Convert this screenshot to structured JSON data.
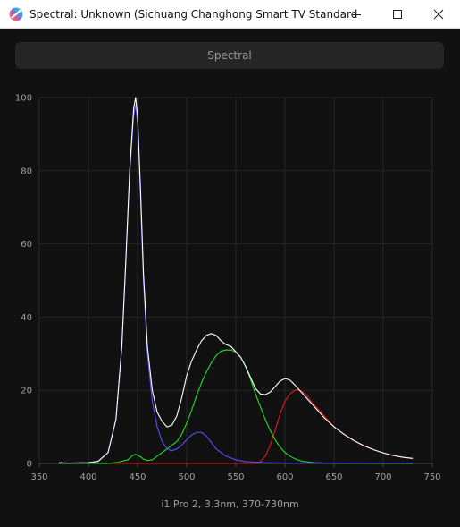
{
  "window": {
    "title": "Spectral: Unknown (Sichuang Changhong Smart TV Standard (i...",
    "minimize_icon": "minimize-icon",
    "maximize_icon": "maximize-icon",
    "close_icon": "close-icon"
  },
  "tab": {
    "label": "Spectral"
  },
  "caption": "i1 Pro 2, 3.3nm, 370-730nm",
  "chart_data": {
    "type": "line",
    "title": "",
    "xlabel": "",
    "ylabel": "",
    "xlim": [
      350,
      750
    ],
    "ylim": [
      0,
      100
    ],
    "x_ticks": [
      350,
      400,
      450,
      500,
      550,
      600,
      650,
      700,
      750
    ],
    "y_ticks": [
      0,
      20,
      40,
      60,
      80,
      100
    ],
    "grid": true,
    "series": [
      {
        "color": "#ffffff",
        "points": [
          [
            370,
            0.2
          ],
          [
            380,
            0.1
          ],
          [
            400,
            0.2
          ],
          [
            410,
            0.6
          ],
          [
            420,
            3
          ],
          [
            428,
            12
          ],
          [
            434,
            32
          ],
          [
            438,
            55
          ],
          [
            442,
            80
          ],
          [
            446,
            97
          ],
          [
            448,
            100
          ],
          [
            450,
            95
          ],
          [
            453,
            75
          ],
          [
            456,
            52
          ],
          [
            460,
            32
          ],
          [
            465,
            20
          ],
          [
            470,
            14
          ],
          [
            475,
            11.5
          ],
          [
            480,
            10
          ],
          [
            485,
            10.5
          ],
          [
            490,
            13
          ],
          [
            495,
            18
          ],
          [
            500,
            24
          ],
          [
            505,
            28
          ],
          [
            510,
            31
          ],
          [
            515,
            33.5
          ],
          [
            520,
            35
          ],
          [
            525,
            35.5
          ],
          [
            530,
            35
          ],
          [
            535,
            33.5
          ],
          [
            540,
            32.5
          ],
          [
            545,
            32
          ],
          [
            550,
            30.5
          ],
          [
            555,
            29
          ],
          [
            560,
            26.5
          ],
          [
            565,
            23.5
          ],
          [
            570,
            20.5
          ],
          [
            575,
            19
          ],
          [
            580,
            18.8
          ],
          [
            585,
            19.5
          ],
          [
            590,
            21
          ],
          [
            595,
            22.5
          ],
          [
            600,
            23.2
          ],
          [
            605,
            22.8
          ],
          [
            610,
            21.5
          ],
          [
            615,
            20
          ],
          [
            620,
            18.5
          ],
          [
            630,
            15.5
          ],
          [
            640,
            12.5
          ],
          [
            650,
            10
          ],
          [
            660,
            8
          ],
          [
            670,
            6.3
          ],
          [
            680,
            4.9
          ],
          [
            690,
            3.8
          ],
          [
            700,
            2.9
          ],
          [
            710,
            2.2
          ],
          [
            720,
            1.7
          ],
          [
            730,
            1.4
          ]
        ]
      },
      {
        "color": "#5b4fff",
        "points": [
          [
            370,
            0.2
          ],
          [
            380,
            0.1
          ],
          [
            400,
            0.2
          ],
          [
            410,
            0.6
          ],
          [
            420,
            3
          ],
          [
            428,
            12
          ],
          [
            434,
            32
          ],
          [
            438,
            55
          ],
          [
            442,
            79
          ],
          [
            446,
            95
          ],
          [
            448,
            98
          ],
          [
            450,
            93
          ],
          [
            453,
            73
          ],
          [
            456,
            50
          ],
          [
            460,
            30
          ],
          [
            465,
            17
          ],
          [
            470,
            10
          ],
          [
            475,
            6
          ],
          [
            480,
            4
          ],
          [
            485,
            3.5
          ],
          [
            490,
            4
          ],
          [
            495,
            5
          ],
          [
            500,
            6.5
          ],
          [
            505,
            7.8
          ],
          [
            510,
            8.5
          ],
          [
            515,
            8.5
          ],
          [
            520,
            7.5
          ],
          [
            525,
            5.8
          ],
          [
            530,
            4
          ],
          [
            540,
            2
          ],
          [
            550,
            1
          ],
          [
            560,
            0.5
          ],
          [
            580,
            0.2
          ],
          [
            600,
            0.1
          ],
          [
            650,
            0.1
          ],
          [
            730,
            0.1
          ]
        ]
      },
      {
        "color": "#22dd22",
        "points": [
          [
            370,
            0
          ],
          [
            420,
            0
          ],
          [
            430,
            0.3
          ],
          [
            440,
            1
          ],
          [
            445,
            2.2
          ],
          [
            448,
            2.5
          ],
          [
            452,
            2
          ],
          [
            456,
            1.2
          ],
          [
            460,
            0.8
          ],
          [
            465,
            1
          ],
          [
            470,
            2
          ],
          [
            475,
            3
          ],
          [
            480,
            4
          ],
          [
            485,
            5
          ],
          [
            490,
            6
          ],
          [
            495,
            8
          ],
          [
            500,
            11
          ],
          [
            505,
            14.5
          ],
          [
            510,
            18.5
          ],
          [
            515,
            22
          ],
          [
            520,
            25
          ],
          [
            525,
            27.5
          ],
          [
            530,
            29.5
          ],
          [
            535,
            30.7
          ],
          [
            540,
            31
          ],
          [
            545,
            31
          ],
          [
            550,
            30.5
          ],
          [
            555,
            29
          ],
          [
            560,
            26.5
          ],
          [
            565,
            23
          ],
          [
            570,
            19
          ],
          [
            575,
            15.5
          ],
          [
            580,
            12
          ],
          [
            585,
            9
          ],
          [
            590,
            6.5
          ],
          [
            595,
            4.5
          ],
          [
            600,
            3
          ],
          [
            605,
            2
          ],
          [
            610,
            1.3
          ],
          [
            615,
            0.8
          ],
          [
            620,
            0.5
          ],
          [
            630,
            0.2
          ],
          [
            640,
            0.1
          ],
          [
            730,
            0
          ]
        ]
      },
      {
        "color": "#e01818",
        "points": [
          [
            370,
            0
          ],
          [
            570,
            0
          ],
          [
            575,
            0.5
          ],
          [
            580,
            2
          ],
          [
            585,
            5
          ],
          [
            590,
            9
          ],
          [
            595,
            13.5
          ],
          [
            600,
            17
          ],
          [
            605,
            19
          ],
          [
            610,
            20
          ],
          [
            615,
            20
          ],
          [
            620,
            19.2
          ],
          [
            630,
            16
          ],
          [
            640,
            13
          ],
          [
            650,
            10
          ],
          [
            660,
            8
          ],
          [
            670,
            6.3
          ],
          [
            680,
            4.9
          ],
          [
            690,
            3.8
          ],
          [
            700,
            2.9
          ],
          [
            710,
            2.2
          ],
          [
            720,
            1.7
          ],
          [
            730,
            1.3
          ]
        ]
      }
    ]
  }
}
